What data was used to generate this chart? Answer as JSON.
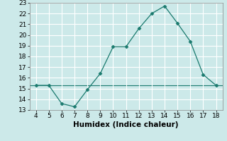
{
  "x": [
    4,
    5,
    6,
    7,
    8,
    9,
    10,
    11,
    12,
    13,
    14,
    15,
    16,
    17,
    18
  ],
  "y": [
    15.3,
    15.3,
    13.6,
    13.3,
    14.9,
    16.4,
    18.9,
    18.9,
    20.6,
    22.0,
    22.7,
    21.1,
    19.4,
    16.3,
    15.3
  ],
  "title": "",
  "xlabel": "Humidex (Indice chaleur)",
  "ylabel": "",
  "xlim": [
    3.5,
    18.5
  ],
  "ylim": [
    13,
    23
  ],
  "yticks": [
    13,
    14,
    15,
    16,
    17,
    18,
    19,
    20,
    21,
    22,
    23
  ],
  "xticks": [
    4,
    5,
    6,
    7,
    8,
    9,
    10,
    11,
    12,
    13,
    14,
    15,
    16,
    17,
    18
  ],
  "line_color": "#1a7a6e",
  "marker": "D",
  "marker_size": 2.5,
  "bg_color": "#cce9e9",
  "grid_color": "#ffffff",
  "hline_y": 15.3,
  "hline_color": "#1a7a6e",
  "tick_fontsize": 6.5,
  "xlabel_fontsize": 7.5
}
